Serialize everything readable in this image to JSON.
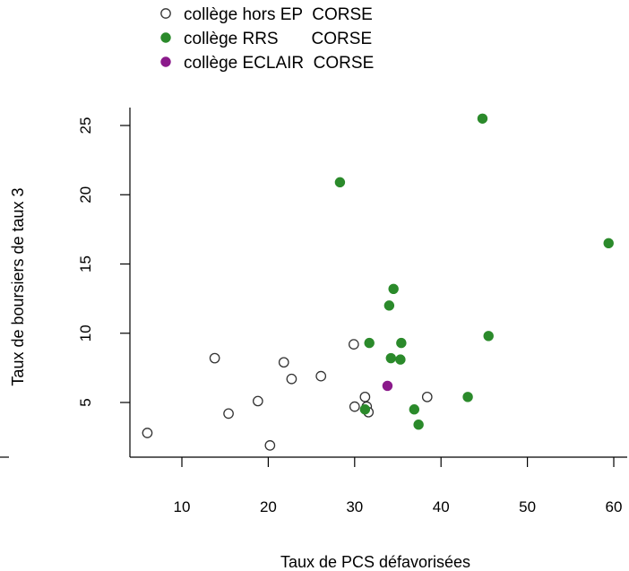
{
  "chart_data": {
    "type": "scatter",
    "title": "",
    "xlabel": "Taux de PCS défavorisées",
    "ylabel": "Taux de boursiers de taux 3",
    "xlim": [
      5,
      62
    ],
    "ylim": [
      1.5,
      27
    ],
    "x_ticks": [
      10,
      20,
      30,
      40,
      50,
      60
    ],
    "y_ticks": [
      5,
      10,
      15,
      20,
      25
    ],
    "grid": false,
    "legend_position": "top-left",
    "series": [
      {
        "name": "collège hors EP  CORSE",
        "marker": "open-circle",
        "color": "#333333",
        "points": [
          [
            6.0,
            2.8
          ],
          [
            13.8,
            8.2
          ],
          [
            15.4,
            4.2
          ],
          [
            18.8,
            5.1
          ],
          [
            20.2,
            1.9
          ],
          [
            21.8,
            7.9
          ],
          [
            22.7,
            6.7
          ],
          [
            26.1,
            6.9
          ],
          [
            29.9,
            9.2
          ],
          [
            30.0,
            4.7
          ],
          [
            31.2,
            5.4
          ],
          [
            31.4,
            4.7
          ],
          [
            31.6,
            4.3
          ],
          [
            38.4,
            5.4
          ]
        ]
      },
      {
        "name": "collège RRS       CORSE",
        "marker": "filled-circle",
        "color": "#2b8a2b",
        "points": [
          [
            28.3,
            20.9
          ],
          [
            44.8,
            25.5
          ],
          [
            59.4,
            16.5
          ],
          [
            34.5,
            13.2
          ],
          [
            34.0,
            12.0
          ],
          [
            31.7,
            9.3
          ],
          [
            35.4,
            9.3
          ],
          [
            45.5,
            9.8
          ],
          [
            34.2,
            8.2
          ],
          [
            35.3,
            8.1
          ],
          [
            31.2,
            4.5
          ],
          [
            36.9,
            4.5
          ],
          [
            43.1,
            5.4
          ],
          [
            37.4,
            3.4
          ]
        ]
      },
      {
        "name": "collège ECLAIR  CORSE",
        "marker": "filled-circle",
        "color": "#8b1a8b",
        "points": [
          [
            33.8,
            6.2
          ]
        ]
      }
    ]
  }
}
